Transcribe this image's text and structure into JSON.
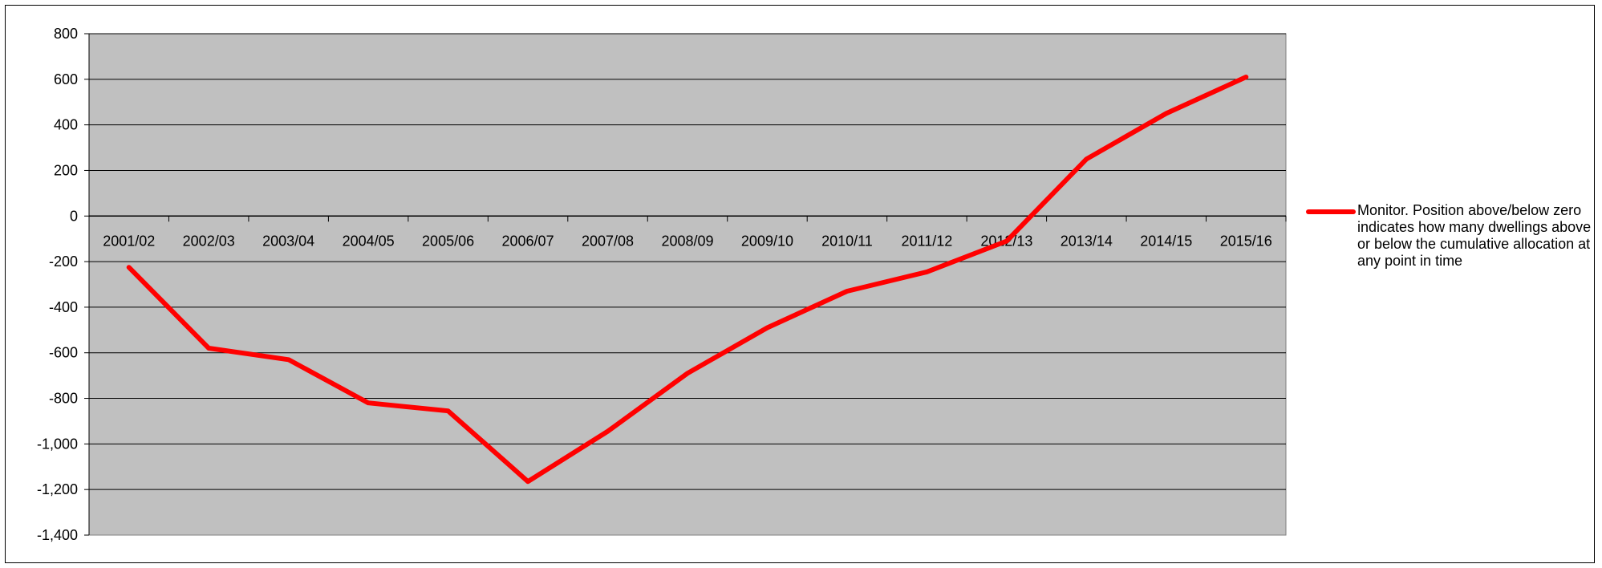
{
  "colors": {
    "plot_background": "#C0C0C0",
    "gridline": "#000000",
    "series_line": "#FF0000",
    "page_background": "#FFFFFF"
  },
  "chart_data": {
    "type": "line",
    "categories": [
      "2001/02",
      "2002/03",
      "2003/04",
      "2004/05",
      "2005/06",
      "2006/07",
      "2007/08",
      "2008/09",
      "2009/10",
      "2010/11",
      "2011/12",
      "2012/13",
      "2013/14",
      "2014/15",
      "2015/16"
    ],
    "series": [
      {
        "name": "Monitor. Position above/below zero indicates how many dwellings above or below the cumulative allocation at any point in time",
        "values": [
          -225,
          -580,
          -630,
          -820,
          -855,
          -1165,
          -945,
          -690,
          -490,
          -330,
          -245,
          -110,
          250,
          450,
          610
        ]
      }
    ],
    "ylim": [
      -1400,
      800
    ],
    "ytick_step": 200,
    "yticks": [
      "800",
      "600",
      "400",
      "200",
      "0",
      "-200",
      "-400",
      "-600",
      "-800",
      "-1,000",
      "-1,200",
      "-1,400"
    ],
    "grid": true,
    "legend": "right",
    "title": "",
    "xlabel": "",
    "ylabel": ""
  }
}
